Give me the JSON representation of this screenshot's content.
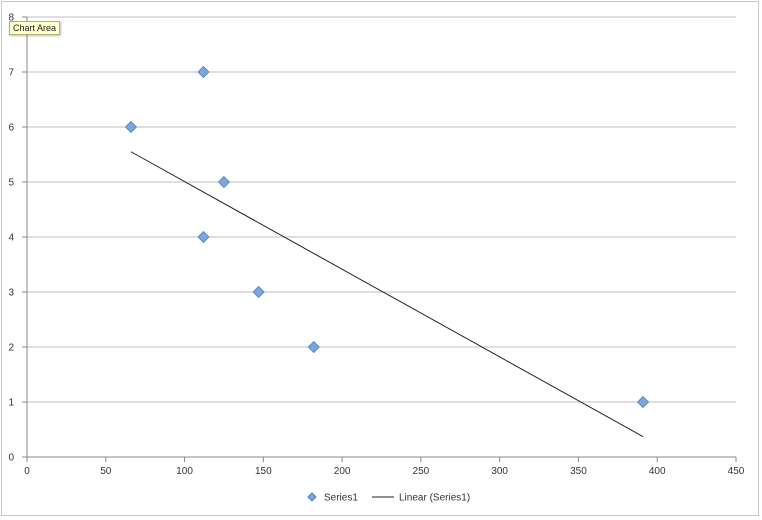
{
  "tooltip": {
    "text": "Chart Area"
  },
  "colors": {
    "marker_fill": "#79A6DC",
    "marker_stroke": "#4F81BD",
    "trendline": "#222222",
    "gridline": "#BFBFBF",
    "axis": "#888888"
  },
  "chart_data": {
    "type": "scatter",
    "title": "",
    "xlabel": "",
    "ylabel": "",
    "xlim": [
      0,
      450
    ],
    "ylim": [
      0,
      8
    ],
    "x_ticks": [
      0,
      50,
      100,
      150,
      200,
      250,
      300,
      350,
      400,
      450
    ],
    "y_ticks": [
      0,
      1,
      2,
      3,
      4,
      5,
      6,
      7,
      8
    ],
    "grid": "horizontal",
    "legend_position": "bottom",
    "series": [
      {
        "name": "Series1",
        "marker": "diamond",
        "points": [
          {
            "x": 66,
            "y": 6
          },
          {
            "x": 112,
            "y": 7
          },
          {
            "x": 125,
            "y": 5
          },
          {
            "x": 112,
            "y": 4
          },
          {
            "x": 147,
            "y": 3
          },
          {
            "x": 182,
            "y": 2
          },
          {
            "x": 391,
            "y": 1
          }
        ]
      }
    ],
    "trendline": {
      "name": "Linear (Series1)",
      "type": "linear",
      "start": {
        "x": 66,
        "y": 5.55
      },
      "end": {
        "x": 391,
        "y": 0.37
      }
    }
  }
}
